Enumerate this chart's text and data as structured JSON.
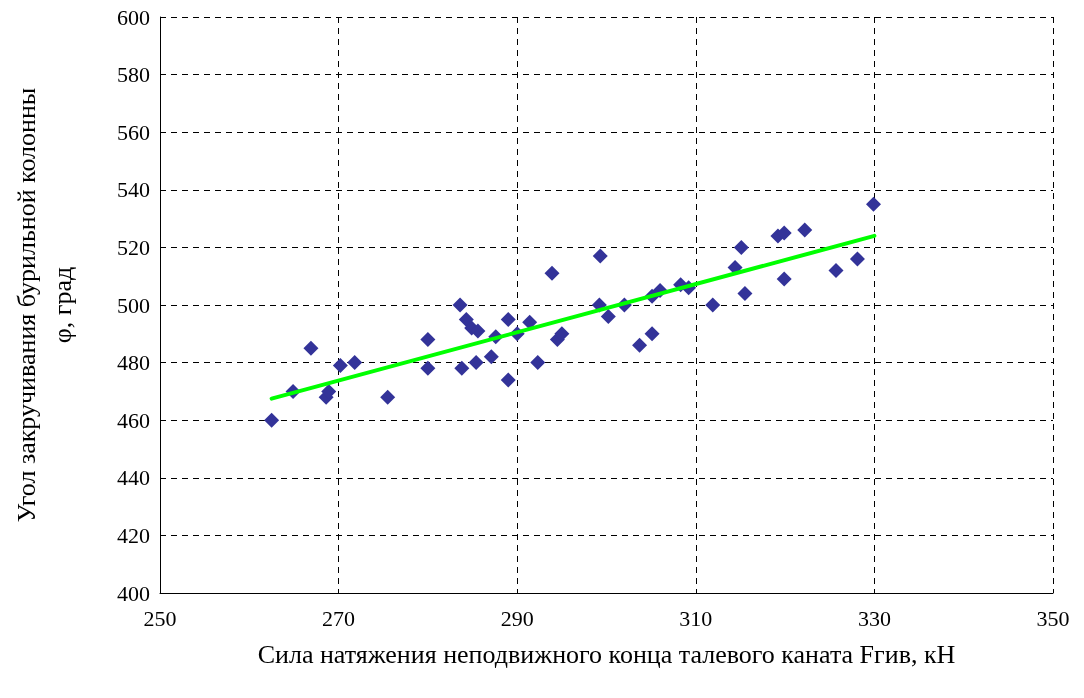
{
  "chart_data": {
    "type": "scatter",
    "xlabel": "Сила натяжения неподвижного конца талевого каната Fгив, кН",
    "ylabel": "Угол закручивания бурильной колонны\nφ, град",
    "xlim": [
      250,
      350
    ],
    "xticks": [
      250,
      270,
      290,
      310,
      330,
      350
    ],
    "ylim": [
      400,
      600
    ],
    "yticks": [
      400,
      420,
      440,
      460,
      480,
      500,
      520,
      540,
      560,
      580,
      600
    ],
    "grid": true,
    "marker": "diamond",
    "series": [
      {
        "color": "#333399",
        "x": [
          262.5,
          264.9,
          266.9,
          268.6,
          268.9,
          270.2,
          271.8,
          275.5,
          280,
          280,
          283.6,
          283.8,
          284.3,
          284.9,
          285.4,
          285.6,
          287.1,
          287.6,
          289,
          289,
          290,
          291.4,
          292.3,
          293.9,
          294.5,
          295,
          299.3,
          299.2,
          300.2,
          302,
          303.7,
          305.1,
          305.1,
          306,
          308.3,
          309.2,
          311.9,
          314.4,
          315.1,
          315.5,
          319.2,
          319.9,
          319.9,
          322.2,
          325.7,
          328.1,
          329.9
        ],
        "values": [
          460,
          470,
          485,
          468,
          470,
          479,
          480,
          468,
          488,
          478,
          500,
          478,
          495,
          492,
          480,
          491,
          482,
          489,
          495,
          474,
          490,
          494,
          480,
          511,
          488,
          490,
          517,
          500,
          496,
          500,
          486,
          490,
          503,
          505,
          507,
          506,
          500,
          513,
          520,
          504,
          524,
          525,
          509,
          526,
          512,
          516,
          535
        ]
      },
      {
        "type": "line",
        "color": "#00ff00",
        "marker": "none",
        "x": [
          262.5,
          330
        ],
        "values": [
          467.5,
          524
        ]
      }
    ]
  }
}
